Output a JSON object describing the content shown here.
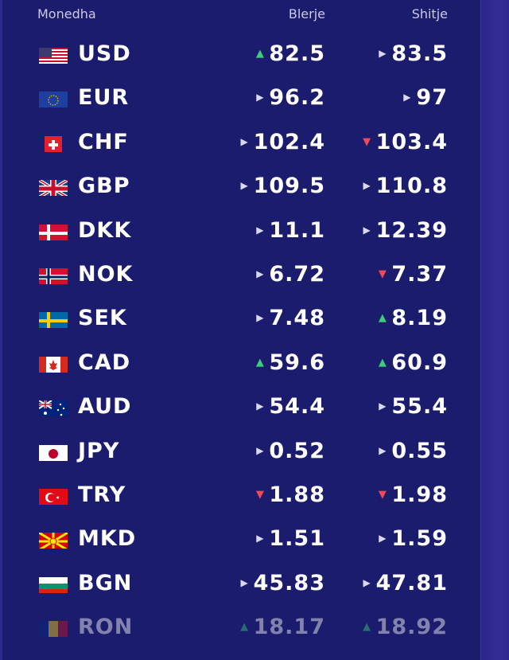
{
  "header": {
    "currency": "Monedha",
    "buy": "Blerje",
    "sell": "Shitje"
  },
  "rows": [
    {
      "code": "USD",
      "buy": "82.5",
      "buy_trend": "up",
      "sell": "83.5",
      "sell_trend": "flat"
    },
    {
      "code": "EUR",
      "buy": "96.2",
      "buy_trend": "flat",
      "sell": "97",
      "sell_trend": "flat"
    },
    {
      "code": "CHF",
      "buy": "102.4",
      "buy_trend": "flat",
      "sell": "103.4",
      "sell_trend": "down"
    },
    {
      "code": "GBP",
      "buy": "109.5",
      "buy_trend": "flat",
      "sell": "110.8",
      "sell_trend": "flat"
    },
    {
      "code": "DKK",
      "buy": "11.1",
      "buy_trend": "flat",
      "sell": "12.39",
      "sell_trend": "flat"
    },
    {
      "code": "NOK",
      "buy": "6.72",
      "buy_trend": "flat",
      "sell": "7.37",
      "sell_trend": "down"
    },
    {
      "code": "SEK",
      "buy": "7.48",
      "buy_trend": "flat",
      "sell": "8.19",
      "sell_trend": "up"
    },
    {
      "code": "CAD",
      "buy": "59.6",
      "buy_trend": "up",
      "sell": "60.9",
      "sell_trend": "up"
    },
    {
      "code": "AUD",
      "buy": "54.4",
      "buy_trend": "flat",
      "sell": "55.4",
      "sell_trend": "flat"
    },
    {
      "code": "JPY",
      "buy": "0.52",
      "buy_trend": "flat",
      "sell": "0.55",
      "sell_trend": "flat"
    },
    {
      "code": "TRY",
      "buy": "1.88",
      "buy_trend": "down",
      "sell": "1.98",
      "sell_trend": "down"
    },
    {
      "code": "MKD",
      "buy": "1.51",
      "buy_trend": "flat",
      "sell": "1.59",
      "sell_trend": "flat"
    },
    {
      "code": "BGN",
      "buy": "45.83",
      "buy_trend": "flat",
      "sell": "47.81",
      "sell_trend": "flat"
    },
    {
      "code": "RON",
      "buy": "18.17",
      "buy_trend": "up",
      "sell": "18.92",
      "sell_trend": "up"
    }
  ],
  "colors": {
    "background": "#1c1c6e",
    "up": "#38d07a",
    "down": "#f04b57"
  }
}
